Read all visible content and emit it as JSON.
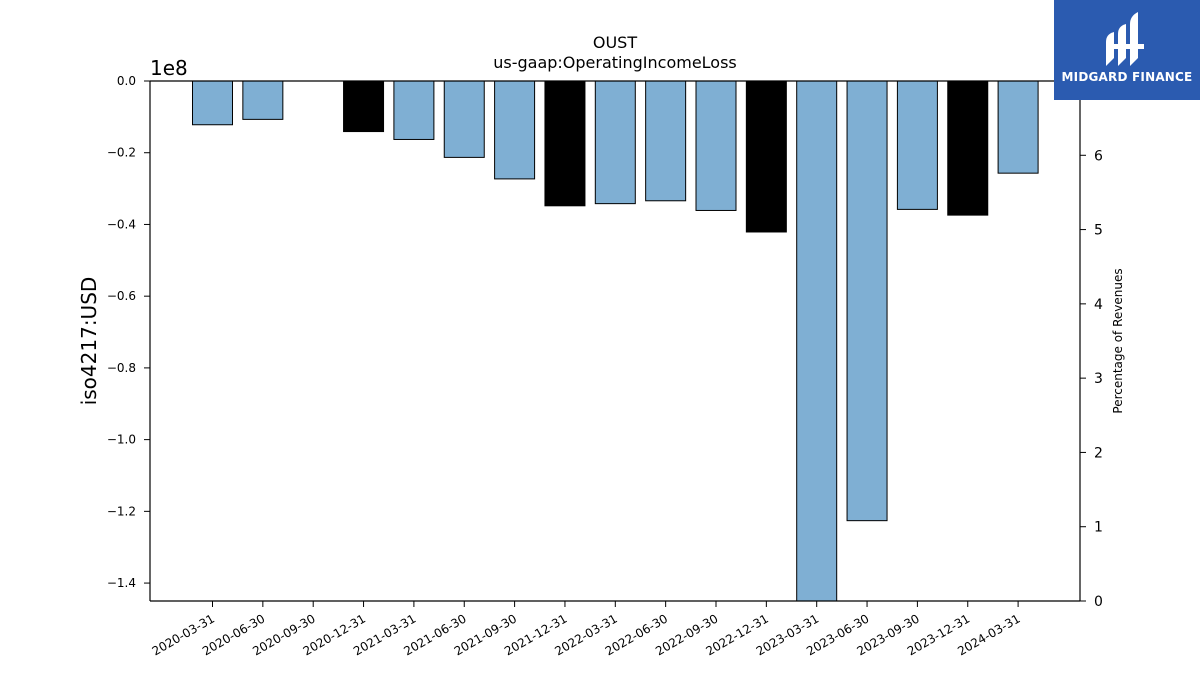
{
  "chart_data": {
    "type": "bar",
    "title": "OUST",
    "subtitle": "us-gaap:OperatingIncomeLoss",
    "ylabel": "iso4217:USD",
    "y_offset_label": "1e8",
    "y2label": "Percentage of Revenues",
    "ylim": [
      -1.45,
      0.0
    ],
    "y_ticks": [
      "0.0",
      "−0.2",
      "−0.4",
      "−0.6",
      "−0.8",
      "−1.0",
      "−1.2",
      "−1.4"
    ],
    "y2lim": [
      0,
      7.0
    ],
    "y2_ticks": [
      "0",
      "1",
      "2",
      "3",
      "4",
      "5",
      "6",
      "7"
    ],
    "grid": false,
    "categories": [
      "2020-03-31",
      "2020-06-30",
      "2020-09-30",
      "2020-12-31",
      "2021-03-31",
      "2021-06-30",
      "2021-09-30",
      "2021-12-31",
      "2022-03-31",
      "2022-06-30",
      "2022-09-30",
      "2022-12-31",
      "2023-03-31",
      "2023-06-30",
      "2023-09-30",
      "2023-12-31",
      "2024-03-31"
    ],
    "values": [
      -0.122,
      -0.107,
      null,
      -0.141,
      -0.163,
      -0.213,
      -0.273,
      -0.348,
      -0.342,
      -0.334,
      -0.361,
      -0.421,
      -1.455,
      -1.226,
      -0.358,
      -0.374,
      -0.257
    ],
    "bar_colors": [
      "#7fafd3",
      "#7fafd3",
      null,
      "#000000",
      "#7fafd3",
      "#7fafd3",
      "#7fafd3",
      "#000000",
      "#7fafd3",
      "#7fafd3",
      "#7fafd3",
      "#000000",
      "#7fafd3",
      "#7fafd3",
      "#7fafd3",
      "#000000",
      "#7fafd3"
    ],
    "colors": {
      "quarter": "#7fafd3",
      "annual": "#000000"
    }
  },
  "logo": {
    "text": "MIDGARD FINANCE",
    "background": "#2b5bb0"
  }
}
